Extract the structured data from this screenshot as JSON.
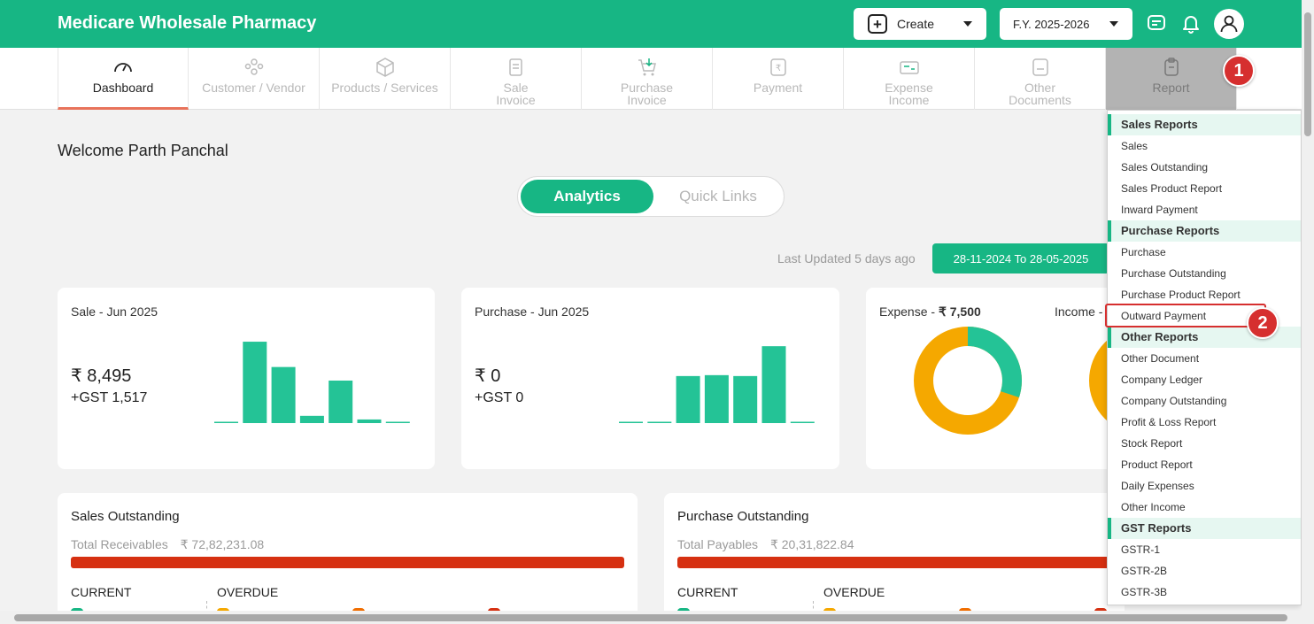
{
  "app": {
    "brand": "Medicare Wholesale Pharmacy"
  },
  "header": {
    "create_label": "Create",
    "fy_label": "F.Y. 2025-2026"
  },
  "nav": {
    "items": [
      {
        "line1": "Dashboard",
        "line2": "",
        "icon": "gauge-icon"
      },
      {
        "line1": "Customer / Vendor",
        "line2": "",
        "icon": "users-icon"
      },
      {
        "line1": "Products / Services",
        "line2": "",
        "icon": "box-icon"
      },
      {
        "line1": "Sale",
        "line2": "Invoice",
        "icon": "sale-invoice-icon"
      },
      {
        "line1": "Purchase",
        "line2": "Invoice",
        "icon": "cart-icon"
      },
      {
        "line1": "Payment",
        "line2": "",
        "icon": "rupee-doc-icon"
      },
      {
        "line1": "Expense",
        "line2": "Income",
        "icon": "expense-icon"
      },
      {
        "line1": "Other",
        "line2": "Documents",
        "icon": "document-icon"
      },
      {
        "line1": "Report",
        "line2": "",
        "icon": "clipboard-icon"
      }
    ]
  },
  "annotations": {
    "badge1": "1",
    "badge2": "2"
  },
  "main": {
    "welcome": "Welcome Parth Panchal",
    "toggle": {
      "active": "Analytics",
      "inactive": "Quick Links"
    },
    "last_updated": "Last Updated 5 days ago",
    "date_range": "28-11-2024 To 28-05-2025"
  },
  "cards": {
    "sale": {
      "title": "Sale - Jun 2025",
      "amount": "₹ 8,495",
      "gst": "+GST 1,517",
      "bar_values": [
        0.5,
        90,
        62,
        8,
        47,
        4,
        0.5
      ]
    },
    "purchase": {
      "title": "Purchase - Jun 2025",
      "amount": "₹ 0",
      "gst": "+GST 0",
      "bar_values": [
        0.5,
        0.5,
        52,
        53,
        52,
        85,
        0.5
      ]
    },
    "expense": {
      "title_prefix": "Expense - ",
      "title_value": "₹ 7,500",
      "income_label": "Income -",
      "donut_fraction_green": 0.3
    }
  },
  "outstanding": {
    "sales": {
      "title": "Sales Outstanding",
      "sub_label": "Total Receivables",
      "sub_value": "₹ 72,82,231.08",
      "current": "CURRENT",
      "overdue": "OVERDUE"
    },
    "purchase": {
      "title": "Purchase Outstanding",
      "sub_label": "Total Payables",
      "sub_value": "₹ 20,31,822.84",
      "current": "CURRENT",
      "overdue": "OVERDUE"
    }
  },
  "report_menu": {
    "sales_header": "Sales Reports",
    "sales": [
      "Sales",
      "Sales Outstanding",
      "Sales Product Report",
      "Inward Payment"
    ],
    "purchase_header": "Purchase Reports",
    "purchase": [
      "Purchase",
      "Purchase Outstanding",
      "Purchase Product Report",
      "Outward Payment"
    ],
    "other_header": "Other Reports",
    "other": [
      "Other Document",
      "Company Ledger",
      "Company Outstanding",
      "Profit & Loss Report",
      "Stock Report",
      "Product Report",
      "Daily Expenses",
      "Other Income"
    ],
    "gst_header": "GST Reports",
    "gst": [
      "GSTR-1",
      "GSTR-2B",
      "GSTR-3B"
    ]
  },
  "colors": {
    "brand": "#17b684",
    "alert": "#d62f2f",
    "donut_orange": "#f5a800",
    "overdue_bar": "#d63011"
  }
}
